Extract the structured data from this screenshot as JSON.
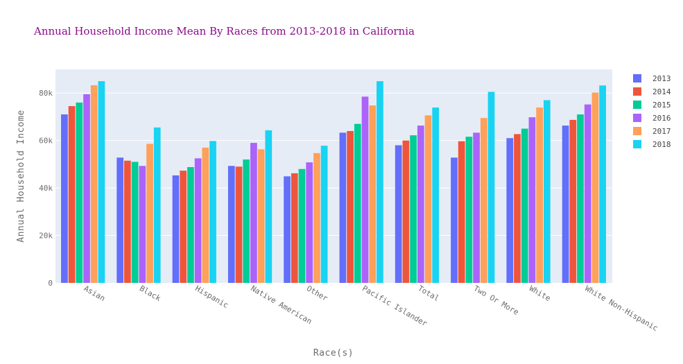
{
  "colors": {
    "title": "#8b0a8b",
    "plot_bg": "#e5ecf6",
    "grid": "#ffffff",
    "series": [
      "#636efa",
      "#ef553b",
      "#00cc96",
      "#ab63fa",
      "#ffa15a",
      "#19d3f3"
    ]
  },
  "chart_data": {
    "type": "bar",
    "title": "Annual Household Income Mean By Races from 2013-2018 in California",
    "xlabel": "Race(s)",
    "ylabel": "Annual Household Income",
    "categories": [
      "Asian",
      "Black",
      "Hispanic",
      "Native American",
      "Other",
      "Pacific Islander",
      "Total",
      "Two Or More",
      "White",
      "White Non-Hispanic"
    ],
    "ylim": [
      0,
      90000
    ],
    "y_ticks": [
      {
        "value": 0,
        "label": "0"
      },
      {
        "value": 20000,
        "label": "20k"
      },
      {
        "value": 40000,
        "label": "40k"
      },
      {
        "value": 60000,
        "label": "60k"
      },
      {
        "value": 80000,
        "label": "80k"
      }
    ],
    "legend_position": "right",
    "series": [
      {
        "name": "2013",
        "values": [
          71000,
          52800,
          45300,
          49300,
          44900,
          63300,
          58000,
          52800,
          61000,
          66300
        ]
      },
      {
        "name": "2014",
        "values": [
          74500,
          51500,
          47300,
          49000,
          46200,
          64000,
          60000,
          59700,
          62700,
          68700
        ]
      },
      {
        "name": "2015",
        "values": [
          76000,
          51000,
          48800,
          52000,
          48000,
          67000,
          62200,
          61600,
          65000,
          71000
        ]
      },
      {
        "name": "2016",
        "values": [
          79500,
          49300,
          52500,
          59000,
          50800,
          78500,
          66300,
          63300,
          69800,
          75200
        ]
      },
      {
        "name": "2017",
        "values": [
          83300,
          58600,
          57000,
          56300,
          54700,
          74800,
          70600,
          69500,
          73900,
          80200
        ]
      },
      {
        "name": "2018",
        "values": [
          85000,
          65500,
          59800,
          64300,
          57800,
          85000,
          73900,
          80500,
          77000,
          83200
        ]
      }
    ]
  }
}
